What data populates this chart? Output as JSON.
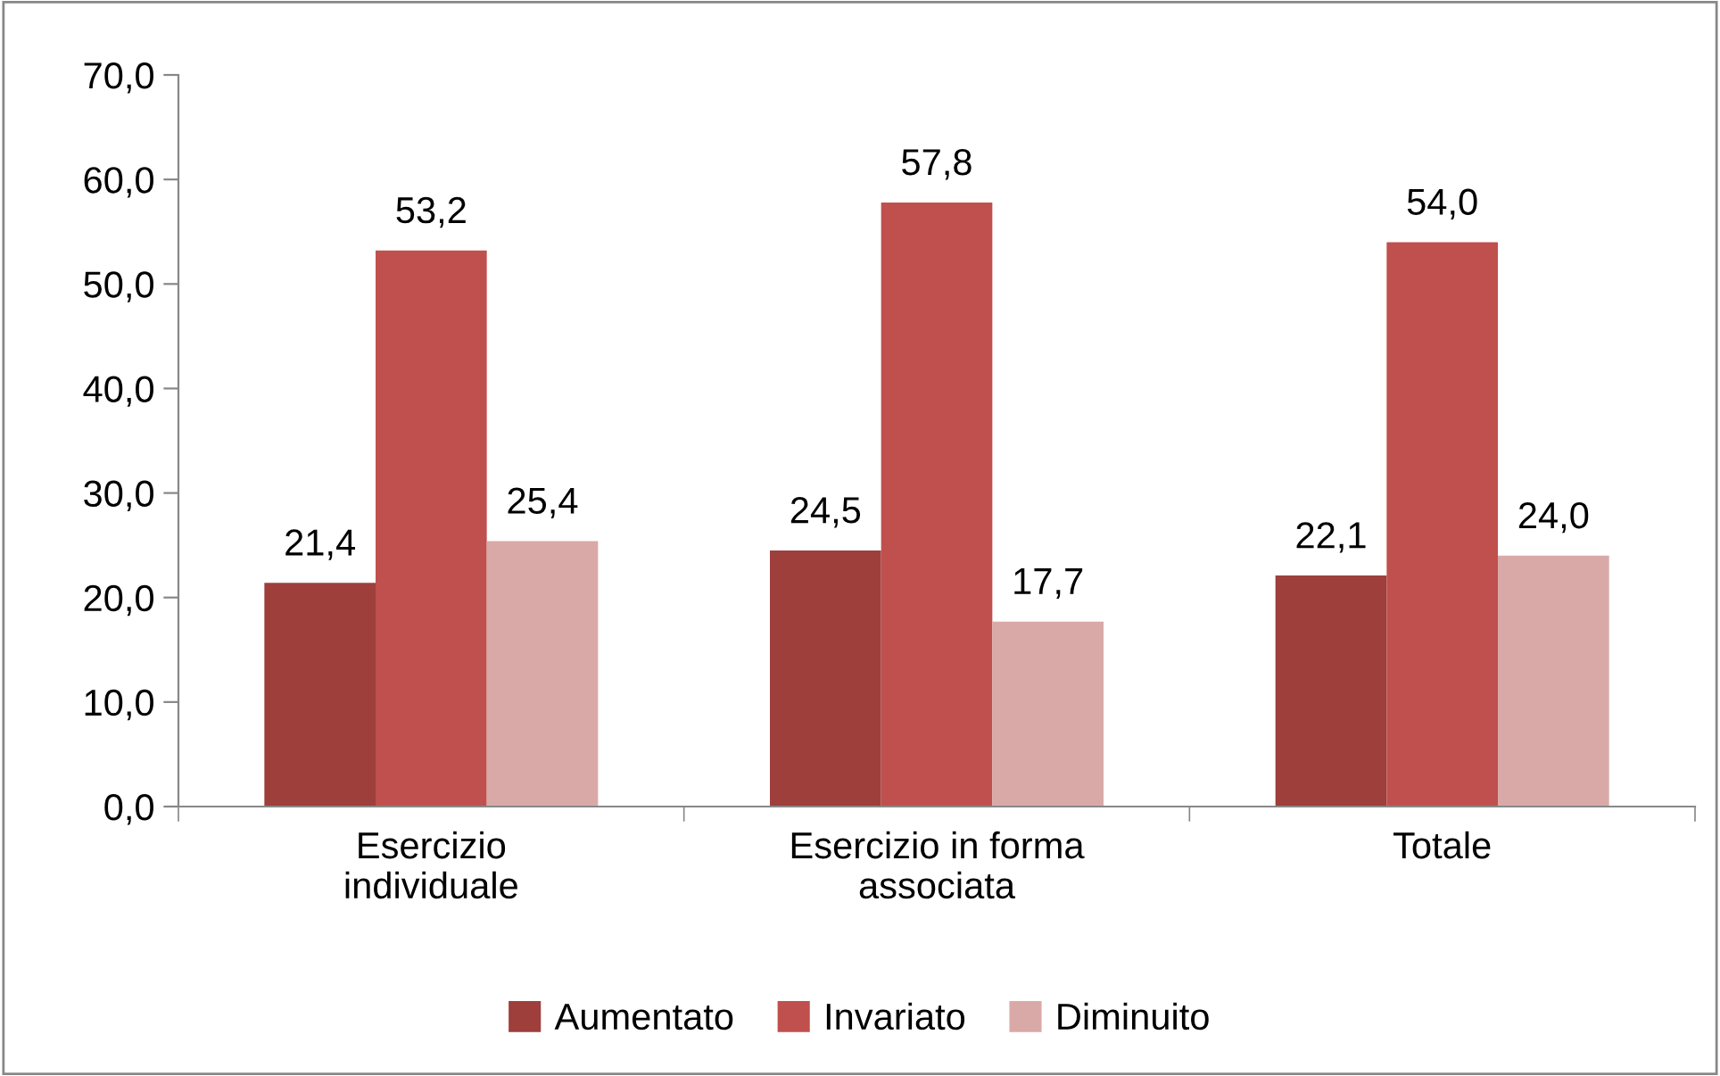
{
  "chart_data": {
    "type": "bar",
    "categories": [
      "Esercizio individuale",
      "Esercizio in forma associata",
      "Totale"
    ],
    "series": [
      {
        "name": "Aumentato",
        "color": "#9e3f3c",
        "values": [
          21.4,
          24.5,
          22.1
        ],
        "value_labels": [
          "21,4",
          "24,5",
          "22,1"
        ]
      },
      {
        "name": "Invariato",
        "color": "#c0504d",
        "values": [
          53.2,
          57.8,
          54.0
        ],
        "value_labels": [
          "53,2",
          "57,8",
          "54,0"
        ]
      },
      {
        "name": "Diminuito",
        "color": "#d9a9a8",
        "values": [
          25.4,
          17.7,
          24.0
        ],
        "value_labels": [
          "25,4",
          "17,7",
          "24,0"
        ]
      }
    ],
    "ylim": [
      0,
      70
    ],
    "yticks": [
      {
        "value": 0,
        "label": "0,0"
      },
      {
        "value": 10,
        "label": "10,0"
      },
      {
        "value": 20,
        "label": "20,0"
      },
      {
        "value": 30,
        "label": "30,0"
      },
      {
        "value": 40,
        "label": "40,0"
      },
      {
        "value": 50,
        "label": "50,0"
      },
      {
        "value": 60,
        "label": "60,0"
      },
      {
        "value": 70,
        "label": "70,0"
      }
    ],
    "grid": false,
    "legend": "bottom"
  }
}
